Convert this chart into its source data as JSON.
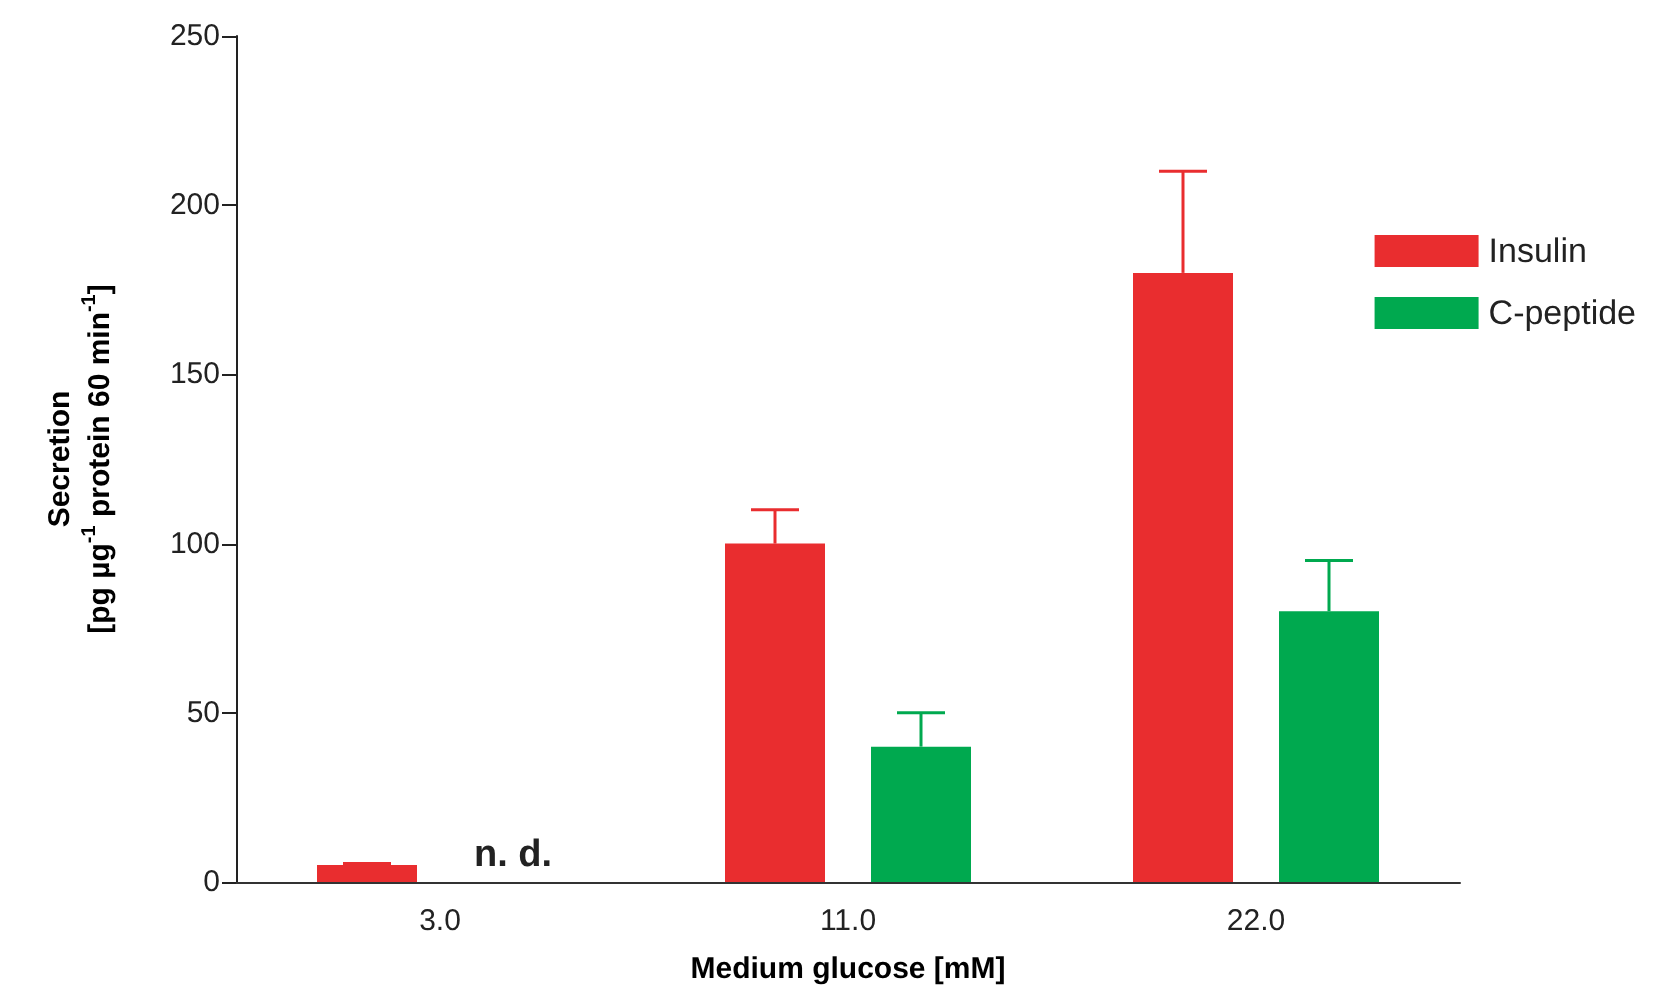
{
  "chart_data": {
    "type": "bar",
    "xlabel": "Medium glucose [mM]",
    "ylabel": "Secretion\n[pg µg$^{-1}$ protein 60 min$^{-1}$]",
    "categories": [
      "3.0",
      "11.0",
      "22.0"
    ],
    "series": [
      {
        "name": "Insulin",
        "color": "#e92d2f",
        "values": [
          5,
          100,
          180
        ],
        "errors": [
          [
            5,
            5.5
          ],
          [
            100,
            110
          ],
          [
            180,
            210
          ]
        ]
      },
      {
        "name": "C-peptide",
        "color": "#00a94f",
        "values": [
          0,
          40,
          80
        ],
        "errors": [
          null,
          [
            40,
            50
          ],
          [
            80,
            95
          ]
        ]
      }
    ],
    "annotations": [
      {
        "text": "n. d.",
        "x": "3.0",
        "y": 0
      }
    ],
    "ylim": [
      0,
      250
    ],
    "yticks": [
      0,
      50,
      100,
      150,
      200,
      250
    ],
    "grid": false,
    "legend": "top right"
  }
}
